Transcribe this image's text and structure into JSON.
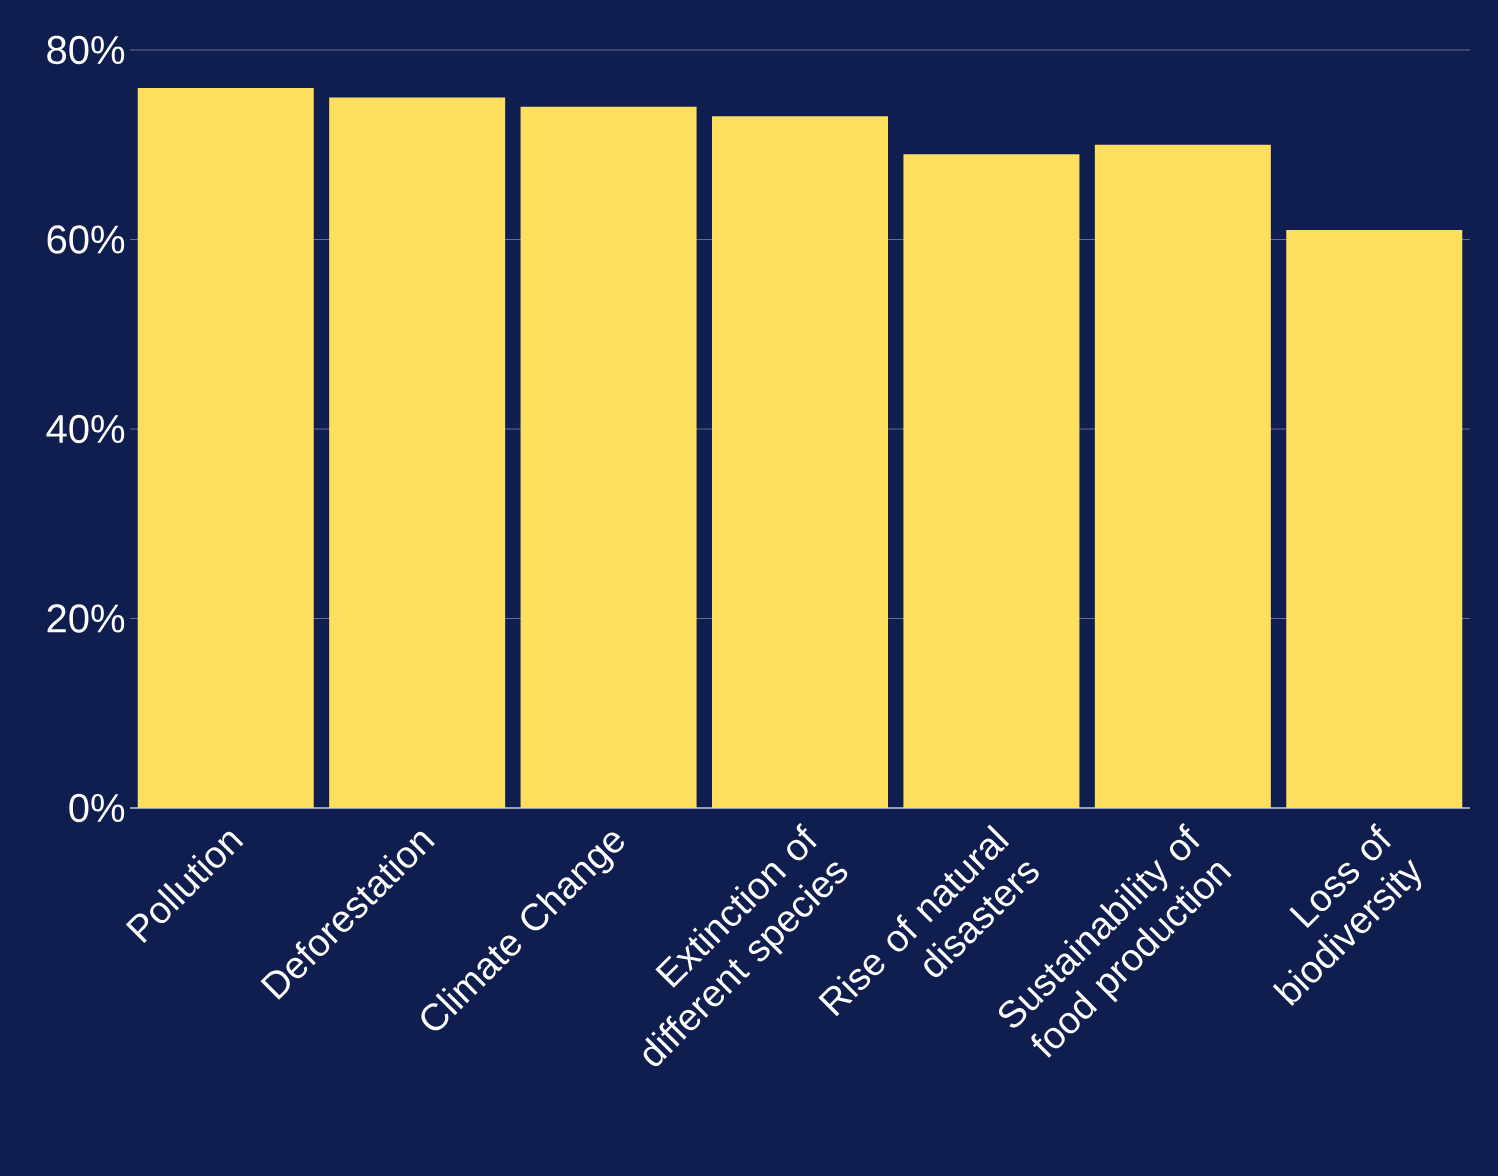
{
  "chart_data": {
    "type": "bar",
    "categories": [
      "Pollution",
      "Deforestation",
      "Climate Change",
      "Extinction of different species",
      "Rise of natural disasters",
      "Sustainability of food production",
      "Loss of biodiversity"
    ],
    "values": [
      76,
      75,
      74,
      73,
      69,
      70,
      61
    ],
    "color": "#ffdf5d",
    "ylim": [
      0,
      80
    ],
    "yticks": [
      {
        "value": 0,
        "label": "0%"
      },
      {
        "value": 20,
        "label": "20%"
      },
      {
        "value": 40,
        "label": "40%"
      },
      {
        "value": 60,
        "label": "60%"
      },
      {
        "value": 80,
        "label": "80%"
      }
    ],
    "grid": "y"
  }
}
